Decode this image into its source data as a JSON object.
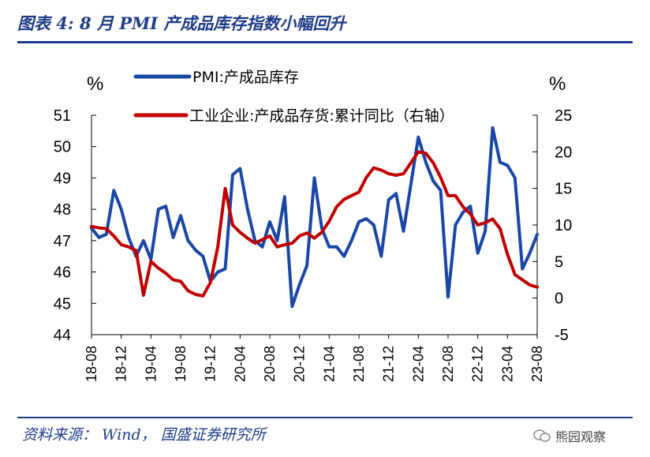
{
  "header": {
    "title": "图表 4:  8 月 PMI 产成品库存指数小幅回升"
  },
  "footer": {
    "source": "资料来源： Wind， 国盛证券研究所",
    "watermark": "熊园观察"
  },
  "colors": {
    "pmi": "#1a47a6",
    "inventory": "#c00000",
    "title": "#1f3c88"
  },
  "chart_data": {
    "type": "line",
    "title": "",
    "ylabel_left": "%",
    "ylabel_right": "%",
    "ylim_left": [
      44,
      51
    ],
    "ylim_right": [
      -5,
      25
    ],
    "yticks_left": [
      "44",
      "45",
      "46",
      "47",
      "48",
      "49",
      "50",
      "51"
    ],
    "yticks_right": [
      "-5",
      "0",
      "5",
      "10",
      "15",
      "20",
      "25"
    ],
    "x_ticks": [
      "18-08",
      "18-12",
      "19-04",
      "19-08",
      "19-12",
      "20-04",
      "20-08",
      "20-12",
      "21-04",
      "21-08",
      "21-12",
      "22-04",
      "22-08",
      "22-12",
      "23-04",
      "23-08"
    ],
    "legend": "top",
    "series": [
      {
        "name": "PMI:产成品库存",
        "axis": "left",
        "color": "#1a47a6",
        "values": [
          47.4,
          47.1,
          47.2,
          48.6,
          48.0,
          47.1,
          46.5,
          47.0,
          46.4,
          48.0,
          48.1,
          47.1,
          47.8,
          47.0,
          46.7,
          46.5,
          45.7,
          46.0,
          46.1,
          49.1,
          49.3,
          48.0,
          47.0,
          46.8,
          47.6,
          47.0,
          48.4,
          44.9,
          45.6,
          46.2,
          49.0,
          47.4,
          46.8,
          46.8,
          46.5,
          47.0,
          47.6,
          47.7,
          47.5,
          46.5,
          48.3,
          48.5,
          47.3,
          48.8,
          50.3,
          49.5,
          48.9,
          48.6,
          45.2,
          47.5,
          47.9,
          48.1,
          46.6,
          47.3,
          50.6,
          49.5,
          49.4,
          49.0,
          46.1,
          46.6,
          47.2
        ],
        "dates": [
          "18-08",
          "18-09",
          "18-10",
          "18-11",
          "18-12",
          "19-01",
          "19-02",
          "19-03",
          "19-04",
          "19-05",
          "19-06",
          "19-07",
          "19-08",
          "19-09",
          "19-10",
          "19-11",
          "19-12",
          "20-01",
          "20-02",
          "20-03",
          "20-04",
          "20-05",
          "20-06",
          "20-07",
          "20-08",
          "20-09",
          "20-10",
          "20-11",
          "20-12",
          "21-01",
          "21-02",
          "21-03",
          "21-04",
          "21-05",
          "21-06",
          "21-07",
          "21-08",
          "21-09",
          "21-10",
          "21-11",
          "21-12",
          "22-01",
          "22-02",
          "22-03",
          "22-04",
          "22-05",
          "22-06",
          "22-07",
          "22-08",
          "22-09",
          "22-10",
          "22-11",
          "22-12",
          "23-01",
          "23-02",
          "23-03",
          "23-04",
          "23-05",
          "23-06",
          "23-07",
          "23-08"
        ]
      },
      {
        "name": "工业企业:产成品存货:累计同比（右轴）",
        "axis": "right",
        "color": "#c00000",
        "values": [
          9.8,
          9.6,
          9.5,
          8.5,
          7.3,
          7.0,
          6.5,
          0.4,
          5.0,
          4.1,
          3.4,
          2.5,
          2.3,
          1.0,
          0.5,
          0.3,
          2.1,
          7.0,
          15.0,
          10.0,
          9.0,
          8.2,
          7.5,
          8.0,
          8.5,
          7.0,
          7.3,
          7.5,
          8.5,
          8.9,
          8.2,
          9.0,
          10.5,
          12.5,
          13.5,
          14.0,
          14.5,
          16.5,
          17.8,
          17.5,
          17.0,
          16.8,
          17.0,
          18.5,
          20.0,
          19.8,
          18.5,
          16.5,
          14.0,
          14.0,
          12.5,
          11.5,
          10.0,
          10.3,
          10.8,
          9.5,
          6.0,
          3.2,
          2.5,
          1.8,
          1.5
        ],
        "dates": [
          "18-08",
          "18-09",
          "18-10",
          "18-11",
          "18-12",
          "19-01",
          "19-02",
          "19-03",
          "19-04",
          "19-05",
          "19-06",
          "19-07",
          "19-08",
          "19-09",
          "19-10",
          "19-11",
          "19-12",
          "20-01",
          "20-02",
          "20-03",
          "20-04",
          "20-05",
          "20-06",
          "20-07",
          "20-08",
          "20-09",
          "20-10",
          "20-11",
          "20-12",
          "21-01",
          "21-02",
          "21-03",
          "21-04",
          "21-05",
          "21-06",
          "21-07",
          "21-08",
          "21-09",
          "21-10",
          "21-11",
          "21-12",
          "22-01",
          "22-02",
          "22-03",
          "22-04",
          "22-05",
          "22-06",
          "22-07",
          "22-08",
          "22-09",
          "22-10",
          "22-11",
          "22-12",
          "23-01",
          "23-02",
          "23-03",
          "23-04",
          "23-05",
          "23-06",
          "23-07",
          "23-08"
        ]
      }
    ]
  }
}
